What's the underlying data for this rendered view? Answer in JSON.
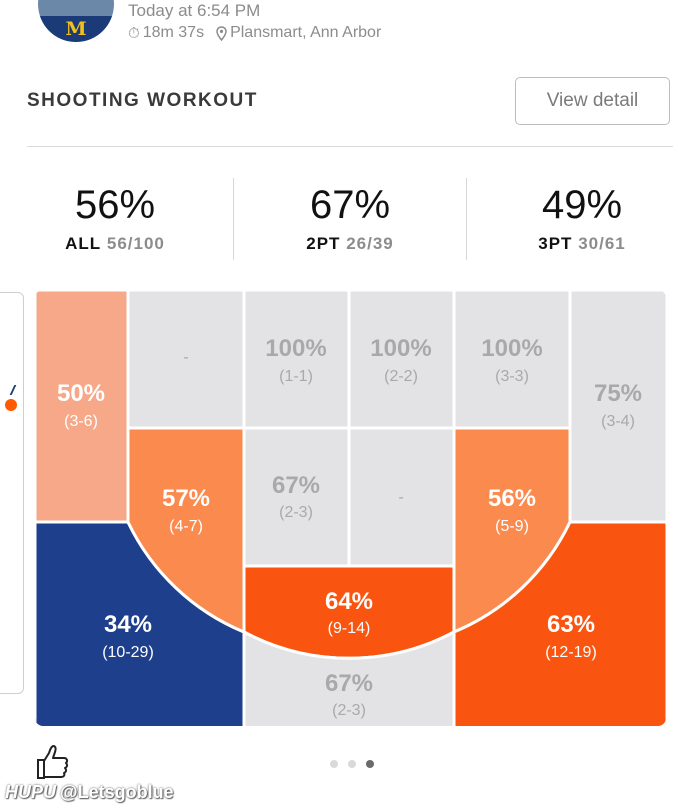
{
  "header": {
    "logo_letter": "M",
    "time": "Today at 6:54 PM",
    "duration": "18m 37s",
    "location": "Plansmart, Ann Arbor"
  },
  "workout": {
    "title": "SHOOTING WORKOUT",
    "view_detail": "View detail"
  },
  "stats": [
    {
      "pct": "56%",
      "label": "ALL",
      "value": "56/100"
    },
    {
      "pct": "67%",
      "label": "2PT",
      "value": "26/39"
    },
    {
      "pct": "49%",
      "label": "3PT",
      "value": "30/61"
    }
  ],
  "zones": {
    "left_corner_top": {
      "pct": "50%",
      "made": "(3-6)",
      "color": "#f6a888"
    },
    "left_wing_top": {
      "pct": "-",
      "made": ""
    },
    "left_elbow_mid": {
      "pct": "57%",
      "made": "(4-7)",
      "color": "#fb8a4e"
    },
    "left_corner_three": {
      "pct": "34%",
      "made": "(10-29)",
      "color": "#1e3f8c"
    },
    "paint_top_left": {
      "pct": "100%",
      "made": "(1-1)"
    },
    "paint_top_mid": {
      "pct": "100%",
      "made": "(2-2)"
    },
    "paint_top_right": {
      "pct": "100%",
      "made": "(3-3)"
    },
    "right_corner_top": {
      "pct": "75%",
      "made": "(3-4)"
    },
    "paint_mid_left": {
      "pct": "67%",
      "made": "(2-3)"
    },
    "paint_mid_right": {
      "pct": "-",
      "made": ""
    },
    "right_elbow_mid": {
      "pct": "56%",
      "made": "(5-9)",
      "color": "#fb8a4e"
    },
    "free_throw": {
      "pct": "64%",
      "made": "(9-14)",
      "color": "#fa5510"
    },
    "right_corner_three": {
      "pct": "63%",
      "made": "(12-19)",
      "color": "#fa5510"
    },
    "top_key_three": {
      "pct": "67%",
      "made": "(2-3)"
    }
  },
  "pager": {
    "count": 3,
    "active": 2
  },
  "watermark": {
    "site": "HUPU",
    "handle": "@Letsgoblue"
  },
  "icons": {
    "timer": "stopwatch-icon",
    "location": "map-pin-icon",
    "like": "thumbs-up-icon"
  }
}
